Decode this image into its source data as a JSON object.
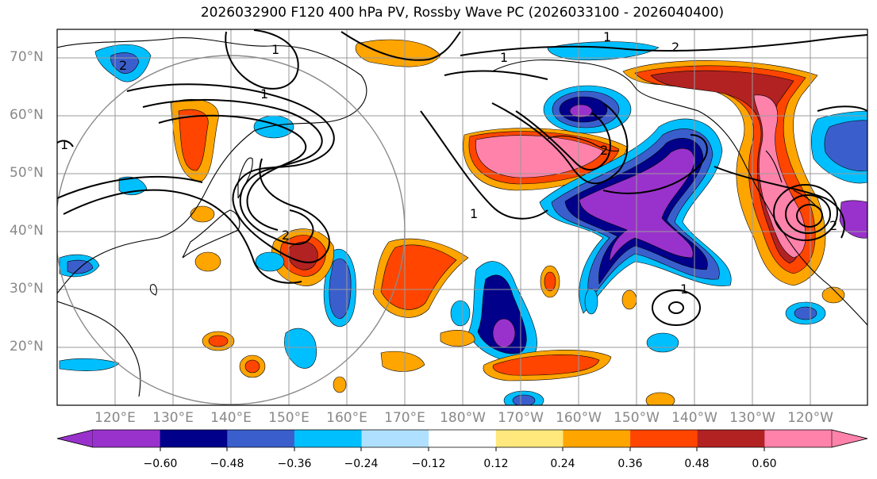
{
  "title": "2026032900 F120 400 hPa PV, Rossby Wave PC (2026033100 - 2026040400)",
  "map": {
    "latitude_labels": [
      "70°N",
      "60°N",
      "50°N",
      "40°N",
      "30°N",
      "20°N"
    ],
    "longitude_labels": [
      "120°E",
      "130°E",
      "140°E",
      "150°E",
      "160°E",
      "170°E",
      "180°W",
      "170°W",
      "160°W",
      "150°W",
      "140°W",
      "130°W",
      "120°W"
    ],
    "contour_labels": [
      "1",
      "1",
      "2",
      "2",
      "1",
      "1",
      "2",
      "2",
      "1",
      "2",
      "1",
      "1"
    ]
  },
  "colorbar": {
    "ticks": [
      "−0.60",
      "−0.48",
      "−0.36",
      "−0.24",
      "−0.12",
      "0.12",
      "0.24",
      "0.36",
      "0.48",
      "0.60"
    ],
    "colors": [
      "#9932CC",
      "#00008B",
      "#3A5FCD",
      "#00BFFF",
      "#B0E0FF",
      "#FFFFFF",
      "#FFE87C",
      "#FFA500",
      "#FF4500",
      "#B22222",
      "#FF82AB",
      "#FF82AB"
    ]
  }
}
